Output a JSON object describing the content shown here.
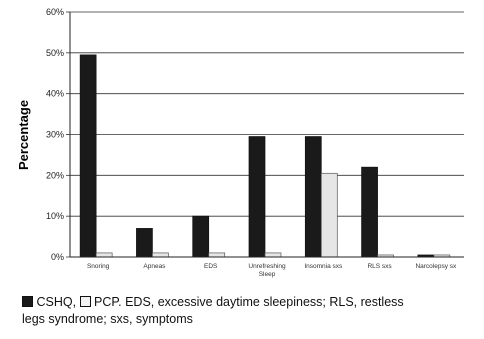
{
  "chart_data": {
    "type": "bar",
    "ylabel": "Percentage",
    "ylim": [
      0,
      60
    ],
    "yticks": [
      "0%",
      "10%",
      "20%",
      "30%",
      "40%",
      "50%",
      "60%"
    ],
    "ytick_values": [
      0,
      10,
      20,
      30,
      40,
      50,
      60
    ],
    "grid": true,
    "categories": [
      [
        "Snoring"
      ],
      [
        "Apneas"
      ],
      [
        "EDS"
      ],
      [
        "Unrefreshing",
        "Sleep"
      ],
      [
        "Insomnia sxs"
      ],
      [
        "RLS sxs"
      ],
      [
        "Narcolepsy sx"
      ]
    ],
    "series": [
      {
        "name": "CSHQ",
        "color": "#1a1a1a",
        "values": [
          49.5,
          7,
          10,
          29.5,
          29.5,
          22,
          0.5
        ]
      },
      {
        "name": "PCP",
        "color": "#e6e6e6",
        "values": [
          1,
          1,
          1,
          1,
          20.5,
          0.5,
          0.5
        ]
      }
    ]
  },
  "caption": {
    "series1": "CSHQ,",
    "series2": "PCP. EDS, excessive daytime sleepiness; RLS, restless",
    "line2": "legs syndrome; sxs, symptoms"
  }
}
